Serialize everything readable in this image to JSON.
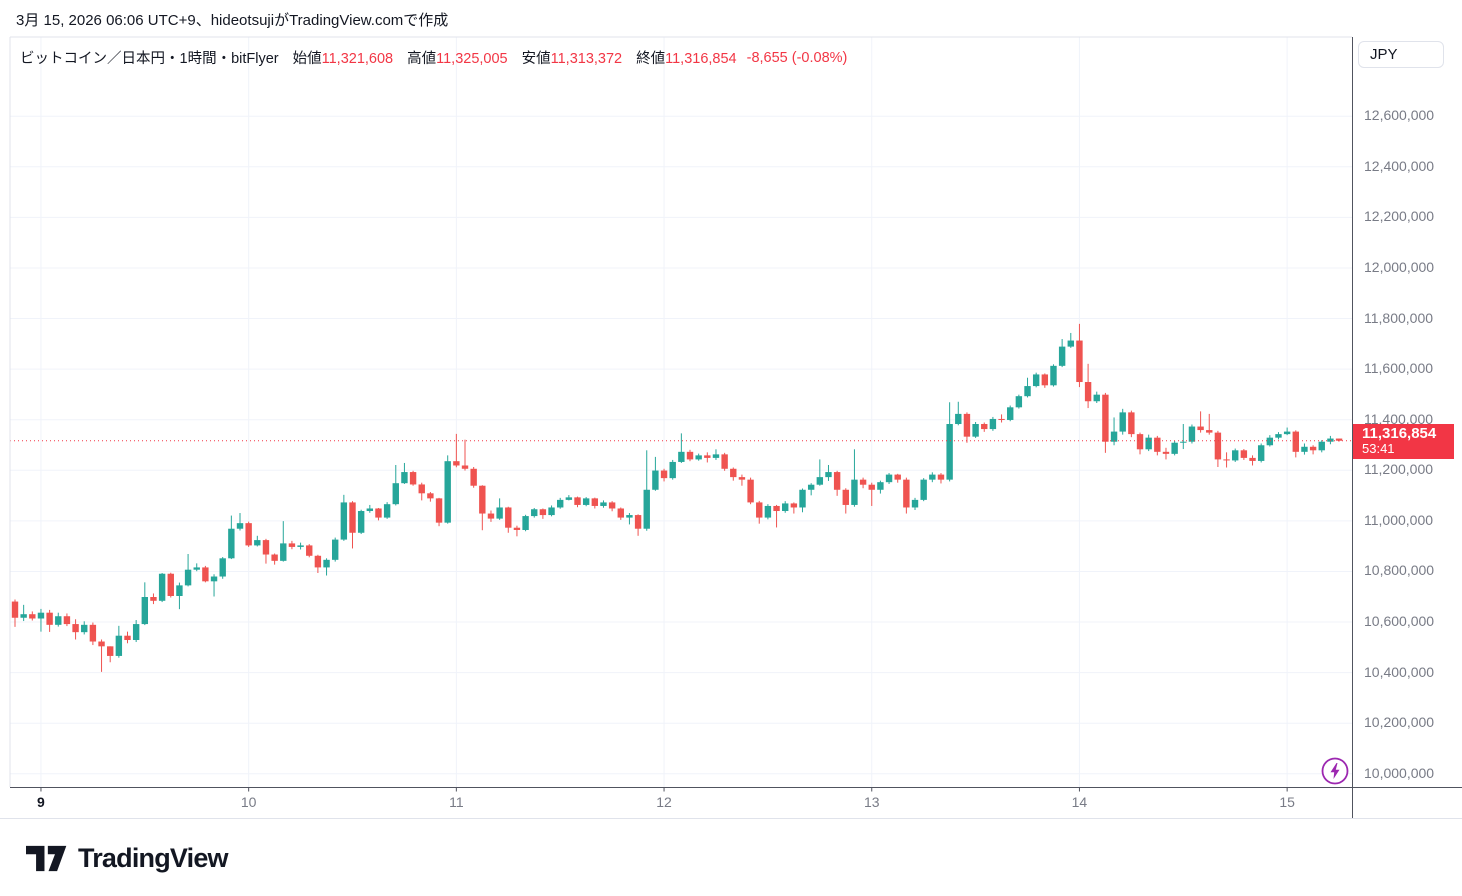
{
  "header": {
    "created_text": "3月 15, 2026 06:06 UTC+9、hideotsujiがTradingView.comで作成"
  },
  "legend": {
    "title": "ビットコイン／日本円・1時間・bitFlyer",
    "open_label": "始値",
    "open": "11,321,608",
    "high_label": "高値",
    "high": "11,325,005",
    "low_label": "安値",
    "low": "11,313,372",
    "close_label": "終値",
    "close": "11,316,854",
    "change": "-8,655 (-0.08%)"
  },
  "price_axis": {
    "currency": "JPY",
    "last_price": "11,316,854",
    "countdown": "53:41",
    "ticks": [
      {
        "label": "12,600,000",
        "price": 12600
      },
      {
        "label": "12,400,000",
        "price": 12400
      },
      {
        "label": "12,200,000",
        "price": 12200
      },
      {
        "label": "12,000,000",
        "price": 12000
      },
      {
        "label": "11,800,000",
        "price": 11800
      },
      {
        "label": "11,600,000",
        "price": 11600
      },
      {
        "label": "11,400,000",
        "price": 11400
      },
      {
        "label": "11,200,000",
        "price": 11200
      },
      {
        "label": "11,000,000",
        "price": 11000
      },
      {
        "label": "10,800,000",
        "price": 10800
      },
      {
        "label": "10,600,000",
        "price": 10600
      },
      {
        "label": "10,400,000",
        "price": 10400
      },
      {
        "label": "10,200,000",
        "price": 10200
      },
      {
        "label": "10,000,000",
        "price": 10000
      }
    ]
  },
  "time_axis": {
    "labels": [
      {
        "label": "9",
        "index": 3,
        "emphasis": true
      },
      {
        "label": "10",
        "index": 27,
        "emphasis": false
      },
      {
        "label": "11",
        "index": 51,
        "emphasis": false
      },
      {
        "label": "12",
        "index": 75,
        "emphasis": false
      },
      {
        "label": "13",
        "index": 99,
        "emphasis": false
      },
      {
        "label": "14",
        "index": 123,
        "emphasis": false
      },
      {
        "label": "15",
        "index": 147,
        "emphasis": false
      }
    ]
  },
  "chart_data": {
    "type": "candlestick",
    "symbol": "ビットコイン／日本円",
    "interval": "1時間",
    "exchange": "bitFlyer",
    "title": "ビットコイン／日本円・1時間・bitFlyer",
    "price_unit_jpy": 1000,
    "y_axis": {
      "min": 10000,
      "max": 12600,
      "gridline_step": 200,
      "grid": true
    },
    "up_color": "#26a69a",
    "down_color": "#ef5350",
    "last_price_line_color": "#f23645",
    "first_open": 10681,
    "closes": [
      10617,
      10631,
      10614,
      10637,
      10589,
      10623,
      10592,
      10560,
      10589,
      10523,
      10504,
      10466,
      10546,
      10529,
      10592,
      10699,
      10684,
      10791,
      10703,
      10745,
      10807,
      10816,
      10761,
      10780,
      10852,
      10969,
      10991,
      10903,
      10924,
      10867,
      10842,
      10911,
      10897,
      10903,
      10862,
      10816,
      10846,
      10926,
      11073,
      10953,
      11039,
      11049,
      11013,
      11066,
      11149,
      11193,
      11144,
      11109,
      11089,
      10993,
      11236,
      11219,
      11206,
      11139,
      11029,
      11009,
      11053,
      10973,
      10964,
      11019,
      11046,
      11023,
      11053,
      11083,
      11093,
      11063,
      11089,
      11059,
      11073,
      11049,
      11013,
      11023,
      10969,
      11123,
      11199,
      11169,
      11233,
      11273,
      11243,
      11259,
      11249,
      11263,
      11206,
      11173,
      11163,
      11073,
      11013,
      11059,
      11039,
      11069,
      11053,
      11123,
      11143,
      11173,
      11193,
      11123,
      11063,
      11163,
      11143,
      11123,
      11153,
      11183,
      11163,
      11053,
      11083,
      11163,
      11183,
      11163,
      11383,
      11423,
      11333,
      11383,
      11363,
      11403,
      11399,
      11449,
      11493,
      11533,
      11579,
      11536,
      11613,
      11689,
      11713,
      11549,
      11473,
      11499,
      11313,
      11353,
      11429,
      11343,
      11283,
      11329,
      11273,
      11265,
      11309,
      11313,
      11373,
      11359,
      11349,
      11243,
      11239,
      11279,
      11249,
      11237,
      11299,
      11329,
      11343,
      11353,
      11273,
      11293,
      11279,
      11313,
      11325.509,
      11316.854
    ],
    "highs": [
      10689,
      10668,
      10642,
      10652,
      10648,
      10637,
      10634,
      10611,
      10603,
      10598,
      10531,
      10477,
      10585,
      10562,
      10608,
      10757,
      10713,
      10794,
      10795,
      10756,
      10869,
      10832,
      10822,
      10789,
      10857,
      11021,
      11031,
      10997,
      10941,
      10929,
      10871,
      10999,
      10921,
      10914,
      10908,
      10866,
      10852,
      10934,
      11103,
      11078,
      11044,
      11063,
      11051,
      11074,
      11221,
      11229,
      11198,
      11151,
      11114,
      11091,
      11259,
      11344,
      11321,
      11213,
      11141,
      11041,
      11089,
      11056,
      10981,
      11024,
      11051,
      11049,
      11061,
      11091,
      11102,
      11096,
      11094,
      11092,
      11081,
      11078,
      11053,
      11031,
      11026,
      11279,
      11253,
      11206,
      11241,
      11346,
      11281,
      11266,
      11271,
      11283,
      11269,
      11211,
      11183,
      11171,
      11079,
      11066,
      11063,
      11078,
      11073,
      11128,
      11149,
      11243,
      11221,
      11198,
      11129,
      11283,
      11171,
      11151,
      11159,
      11189,
      11186,
      11171,
      11091,
      11169,
      11192,
      11189,
      11469,
      11471,
      11429,
      11391,
      11389,
      11411,
      11421,
      11456,
      11499,
      11566,
      11586,
      11583,
      11619,
      11719,
      11743,
      11779,
      11621,
      11511,
      11506,
      11409,
      11443,
      11436,
      11349,
      11341,
      11336,
      11289,
      11316,
      11383,
      11381,
      11433,
      11423,
      11356,
      11271,
      11286,
      11284,
      11259,
      11306,
      11339,
      11351,
      11369,
      11358,
      11306,
      11299,
      11319,
      11336,
      11325.005
    ],
    "lows": [
      10581,
      10604,
      10606,
      10562,
      10561,
      10582,
      10584,
      10531,
      10551,
      10509,
      10403,
      10441,
      10459,
      10516,
      10521,
      10588,
      10671,
      10679,
      10697,
      10651,
      10741,
      10801,
      10757,
      10701,
      10771,
      10849,
      10962,
      10897,
      10899,
      10831,
      10827,
      10839,
      10888,
      10887,
      10856,
      10794,
      10784,
      10839,
      10921,
      10891,
      10948,
      11032,
      11002,
      11008,
      11061,
      11146,
      11139,
      11081,
      11076,
      10979,
      10989,
      11212,
      11199,
      11131,
      10963,
      10996,
      11004,
      10953,
      10939,
      10959,
      11013,
      11008,
      11018,
      11048,
      11081,
      11054,
      11058,
      11049,
      11052,
      11038,
      11004,
      10986,
      10941,
      10961,
      11119,
      11156,
      11163,
      11229,
      11236,
      11238,
      11231,
      11241,
      11198,
      11159,
      11139,
      11066,
      10989,
      11006,
      10974,
      11032,
      11029,
      11034,
      11101,
      11139,
      11158,
      11099,
      11029,
      11056,
      11129,
      11059,
      11108,
      11146,
      11151,
      11029,
      11043,
      11078,
      11153,
      11148,
      11156,
      11378,
      11309,
      11328,
      11352,
      11356,
      11389,
      11394,
      11444,
      11488,
      11528,
      11526,
      11531,
      11608,
      11684,
      11529,
      11446,
      11466,
      11269,
      11299,
      11341,
      11331,
      11263,
      11276,
      11259,
      11243,
      11259,
      11284,
      11306,
      11349,
      11341,
      11213,
      11211,
      11233,
      11241,
      11219,
      11231,
      11294,
      11322,
      11339,
      11251,
      11262,
      11263,
      11271,
      11303,
      11313.372
    ]
  },
  "footer": {
    "brand": "TradingView"
  },
  "icons": {
    "lightning_color": "#9c27b0"
  },
  "colors": {
    "accent_red": "#f23645",
    "candle_up": "#26a69a",
    "candle_down": "#ef5350",
    "grid": "#f0f3fa",
    "border_light": "#e0e3eb",
    "border_dark": "#50535e",
    "text_dark": "#131722",
    "text_gray": "#787b86"
  }
}
